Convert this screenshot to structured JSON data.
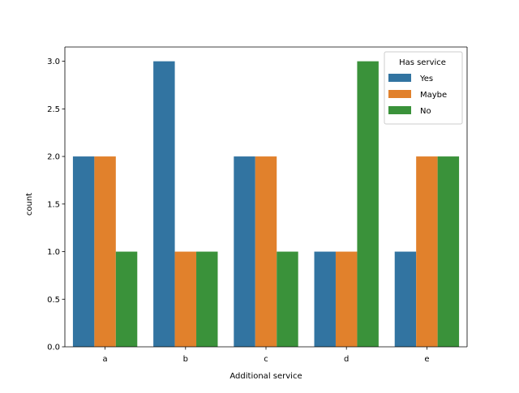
{
  "chart_data": {
    "type": "bar",
    "xlabel": "Additional service",
    "ylabel": "count",
    "categories": [
      "a",
      "b",
      "c",
      "d",
      "e"
    ],
    "series": [
      {
        "name": "Yes",
        "color": "#3274a1",
        "values": [
          2,
          3,
          2,
          1,
          1
        ]
      },
      {
        "name": "Maybe",
        "color": "#e1812c",
        "values": [
          2,
          1,
          2,
          1,
          2
        ]
      },
      {
        "name": "No",
        "color": "#3a923a",
        "values": [
          1,
          1,
          1,
          3,
          2
        ]
      }
    ],
    "ylim": [
      0,
      3.15
    ],
    "yticks": [
      "0.0",
      "0.5",
      "1.0",
      "1.5",
      "2.0",
      "2.5",
      "3.0"
    ],
    "grid": false,
    "legend": {
      "title": "Has service",
      "position": "top-right"
    }
  }
}
